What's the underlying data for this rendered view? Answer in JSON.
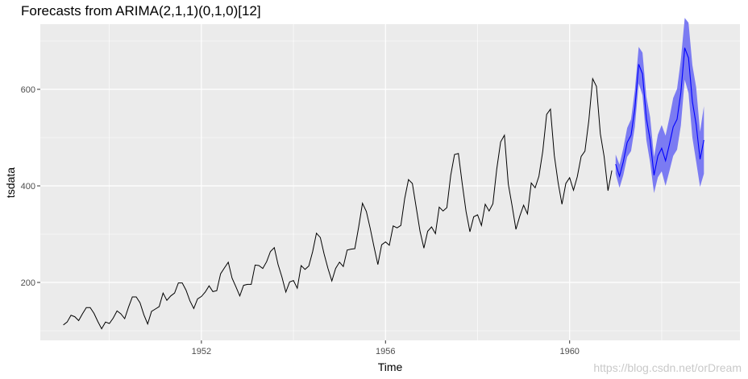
{
  "chart_data": {
    "type": "line",
    "title": "Forecasts from ARIMA(2,1,1)(0,1,0)[12]",
    "xlabel": "Time",
    "ylabel": "tsdata",
    "x_ticks": [
      1952,
      1956,
      1960
    ],
    "y_ticks": [
      200,
      400,
      600
    ],
    "xlim": [
      1948.5,
      1963.7
    ],
    "ylim": [
      80,
      735
    ],
    "grid": true,
    "legend": "none",
    "colors": {
      "panel": "#ebebeb",
      "grid": "#ffffff",
      "observed": "#000000",
      "forecast": "#0000ff",
      "band": "#7b7bf2"
    },
    "series": [
      {
        "x_start": 1949.0,
        "step": 0.0833333,
        "values": [
          112,
          118,
          132,
          129,
          121,
          135,
          148,
          148,
          136,
          119,
          104,
          118,
          115,
          126,
          141,
          135,
          125,
          149,
          170,
          170,
          158,
          133,
          114,
          140,
          145,
          150,
          178,
          163,
          172,
          178,
          199,
          199,
          184,
          162,
          146,
          166,
          171,
          180,
          193,
          181,
          183,
          218,
          230,
          242,
          209,
          191,
          172,
          194,
          196,
          196,
          236,
          235,
          229,
          243,
          264,
          272,
          237,
          211,
          180,
          201,
          204,
          188,
          235,
          227,
          234,
          264,
          302,
          293,
          259,
          229,
          203,
          229,
          242,
          233,
          267,
          269,
          270,
          315,
          364,
          347,
          312,
          274,
          237,
          278,
          284,
          277,
          317,
          313,
          318,
          374,
          413,
          405,
          355,
          306,
          271,
          306,
          315,
          301,
          356,
          348,
          355,
          422,
          465,
          467,
          404,
          347,
          305,
          336,
          340,
          318,
          362,
          348,
          363,
          435,
          491,
          505,
          404,
          359,
          310,
          337,
          360,
          342,
          406,
          396,
          420,
          472,
          548,
          559,
          463,
          407,
          362,
          405,
          417,
          391,
          419,
          461,
          472,
          535,
          622,
          606,
          508,
          461,
          390,
          432
        ]
      },
      {
        "x_start": 1961.0,
        "step": 0.0833333,
        "values": [
          445,
          420,
          450,
          490,
          505,
          560,
          652,
          632,
          540,
          495,
          422,
          462,
          478,
          452,
          485,
          522,
          538,
          593,
          686,
          665,
          575,
          527,
          455,
          495
        ],
        "lower": [
          425,
          396,
          422,
          460,
          472,
          522,
          612,
          588,
          495,
          448,
          385,
          418,
          430,
          400,
          430,
          462,
          475,
          525,
          620,
          592,
          500,
          450,
          398,
          425
        ],
        "upper": [
          465,
          444,
          478,
          520,
          538,
          598,
          688,
          676,
          585,
          542,
          460,
          506,
          526,
          504,
          540,
          582,
          601,
          661,
          748,
          738,
          650,
          604,
          512,
          565
        ]
      }
    ]
  },
  "watermark": "https://blog.csdn.net/orDream"
}
